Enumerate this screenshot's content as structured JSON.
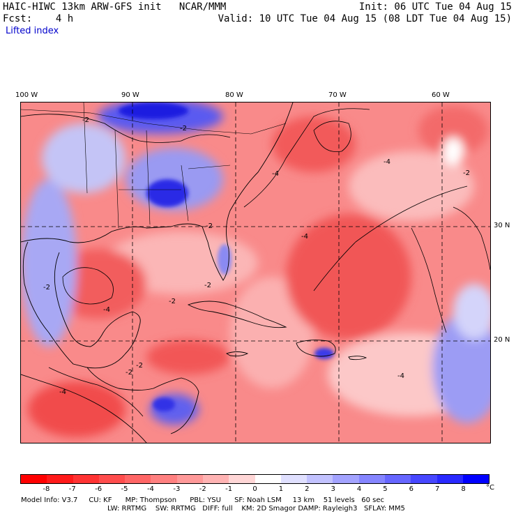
{
  "header": {
    "model_title": "HAIC-HIWC 13km ARW-GFS init",
    "org": "NCAR/MMM",
    "fcst_label": "Fcst:",
    "fcst_value": "4 h",
    "init": "Init: 06 UTC Tue 04 Aug 15",
    "valid": "Valid: 10 UTC Tue 04 Aug 15 (08 LDT Tue 04 Aug 15)",
    "field": "Lifted index"
  },
  "map": {
    "lon_labels": [
      "100 W",
      "90 W",
      "80 W",
      "70 W",
      "60 W"
    ],
    "lat_labels": [
      "30 N",
      "20 N"
    ],
    "contour_labels": [
      "-2",
      "-2",
      "-2",
      "-4",
      "-4",
      "-2",
      "-2",
      "-4",
      "-2",
      "-4",
      "-2",
      "-4",
      "-2",
      "-2",
      "-4"
    ]
  },
  "colorbar": {
    "ticks": [
      "-8",
      "-7",
      "-6",
      "-5",
      "-4",
      "-3",
      "-2",
      "-1",
      "0",
      "1",
      "2",
      "3",
      "4",
      "5",
      "6",
      "7",
      "8"
    ],
    "unit": "°C",
    "colors": [
      "#ff0000",
      "#ff1a1a",
      "#ff3333",
      "#ff4d4d",
      "#ff6666",
      "#ff8080",
      "#ff9999",
      "#ffb3b3",
      "#ffd6d6",
      "#ffffff",
      "#e0e0ff",
      "#c2c2ff",
      "#a3a3ff",
      "#8585ff",
      "#6666ff",
      "#4747ff",
      "#2929ff",
      "#0000ff"
    ]
  },
  "model_info": {
    "line1": [
      "Model Info: V3.7",
      "CU: KF",
      "MP: Thompson",
      "PBL: YSU",
      "SF: Noah LSM",
      "13 km",
      "51 levels",
      "60 sec"
    ],
    "line2": [
      "LW: RRTMG",
      "SW: RRTMG",
      "DIFF: full",
      "KM: 2D Smagor",
      "DAMP: Rayleigh3",
      "SFLAY: MM5"
    ]
  },
  "colors": {
    "negative_strong": "#f04848",
    "negative_mid": "#f87a7a",
    "negative_light": "#fbbcbc",
    "positive_light": "#c8c8f8",
    "positive_mid": "#7070f0",
    "positive_strong": "#1a1ae0"
  }
}
